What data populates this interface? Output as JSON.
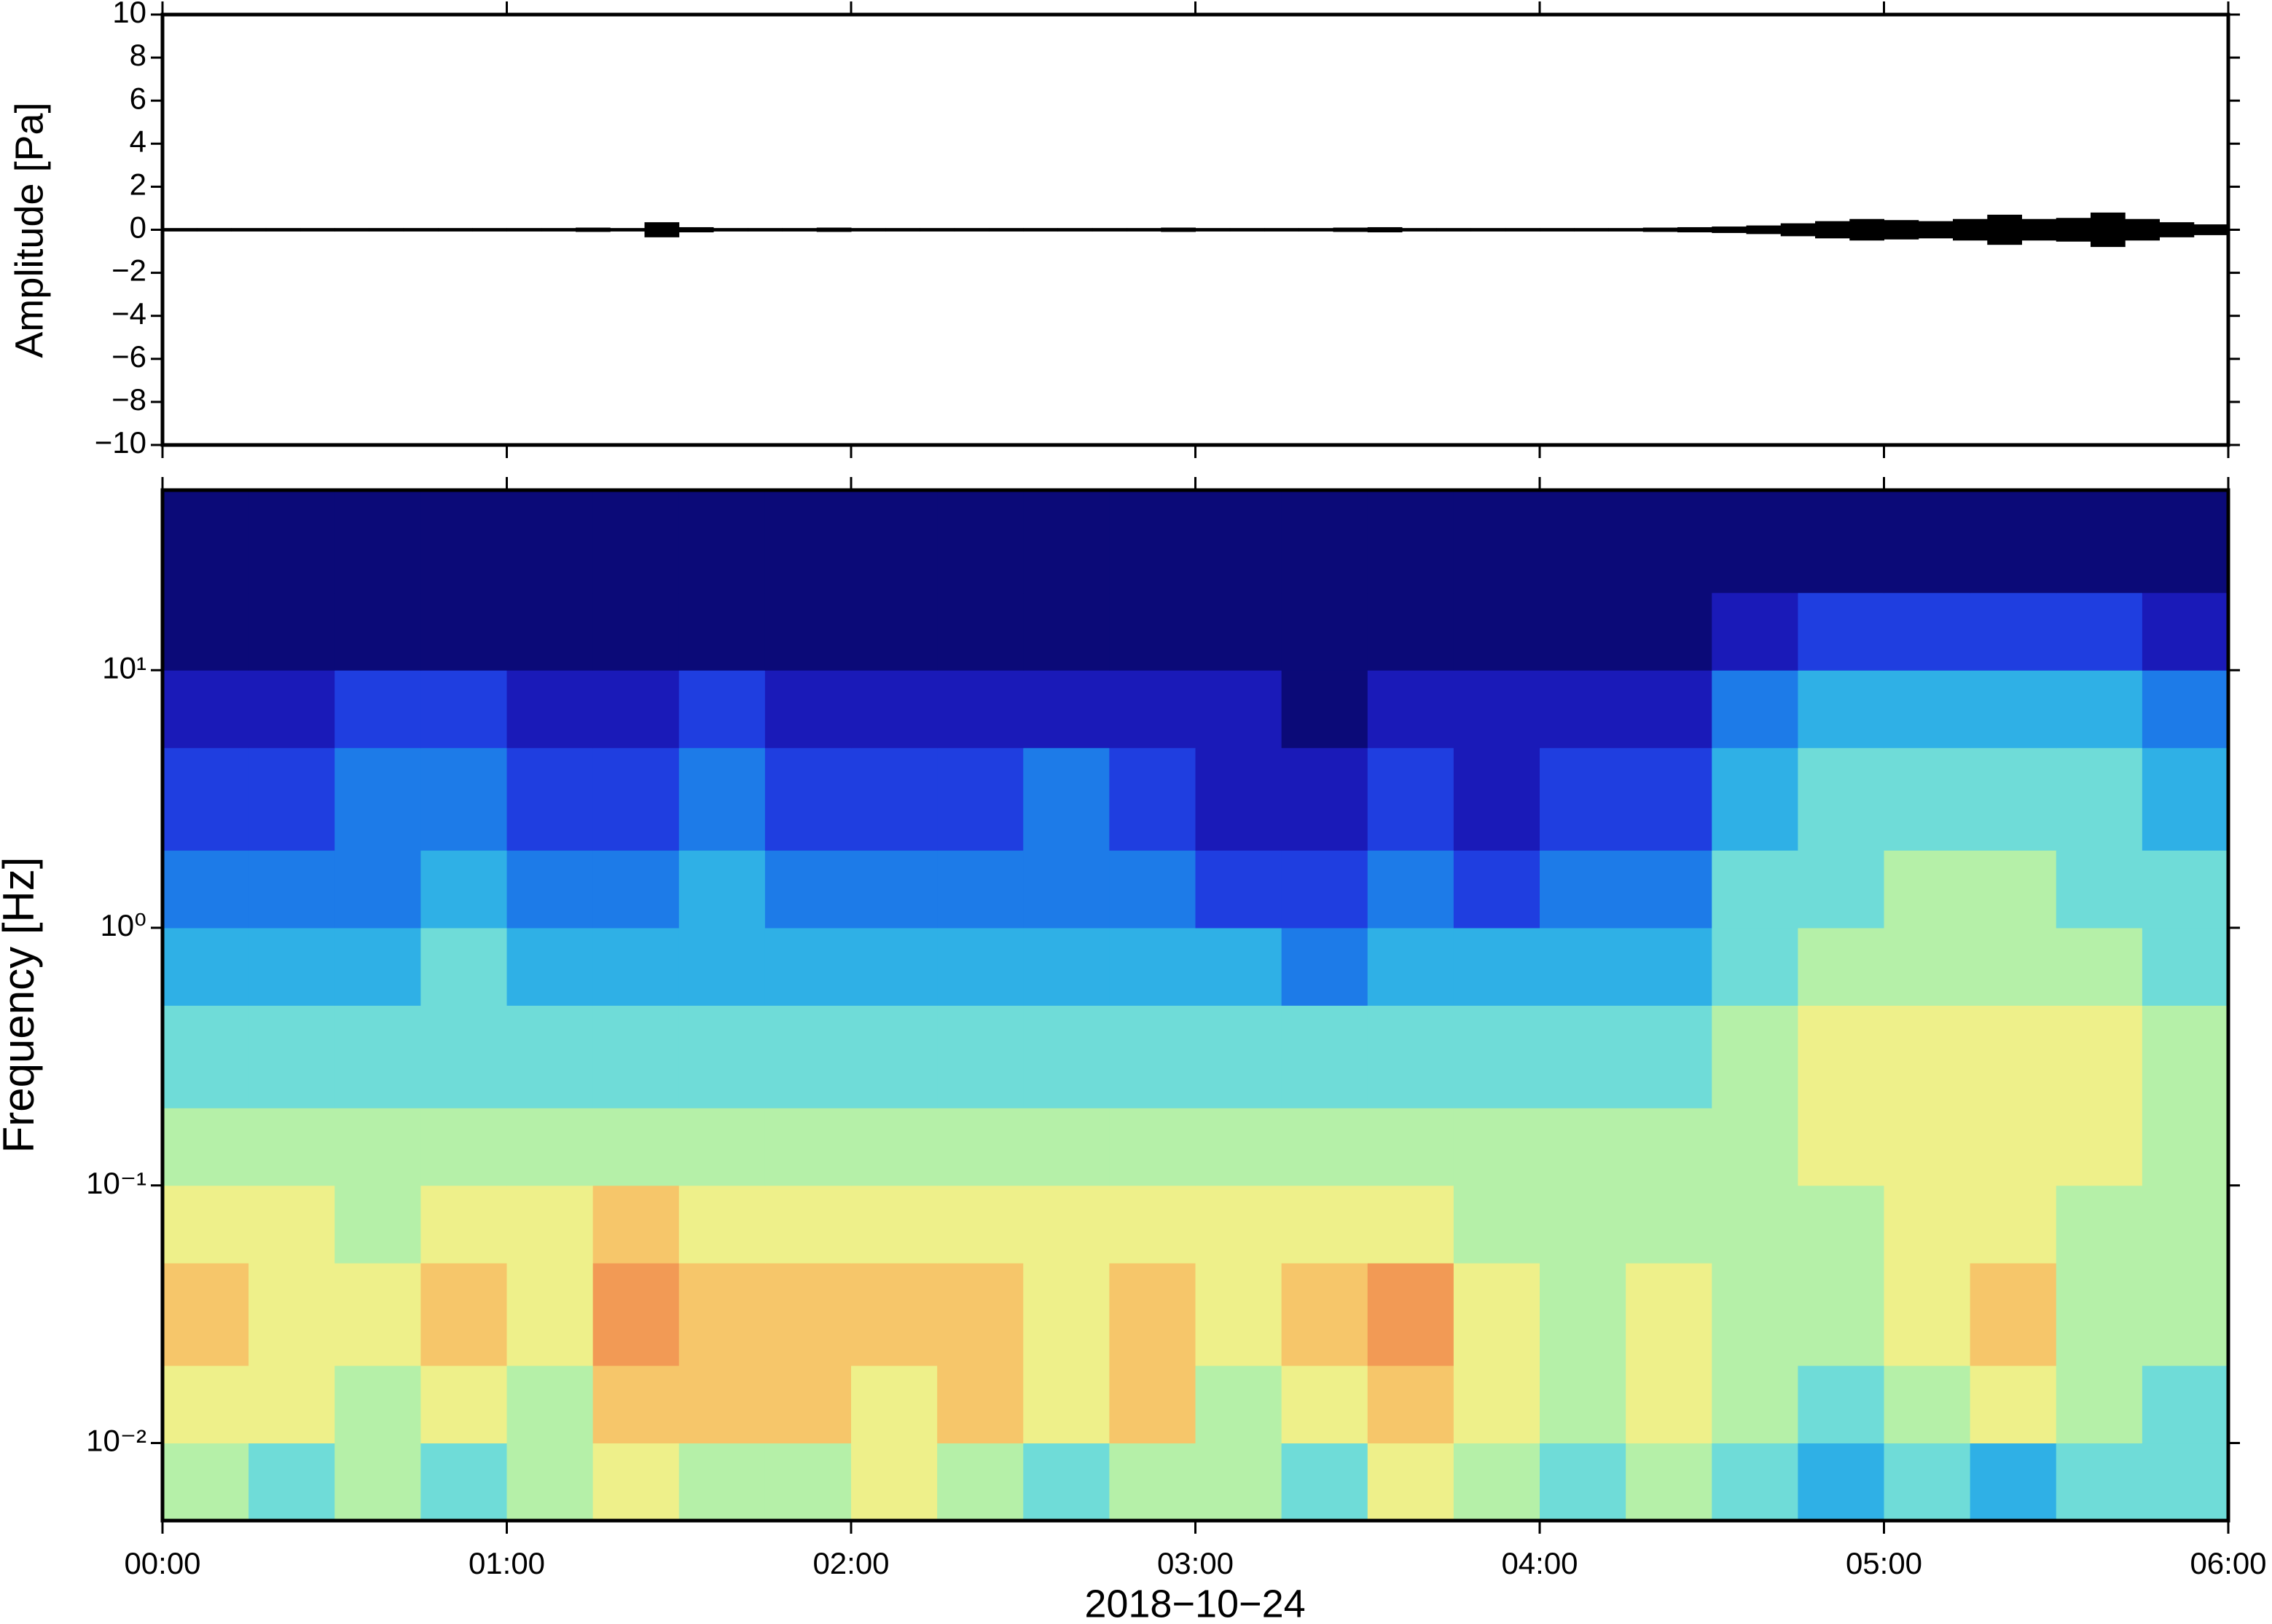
{
  "chart_data": [
    {
      "type": "waveform",
      "ylabel": "Amplitude [Pa]",
      "color": "#000000",
      "x": [
        0,
        0.1,
        0.2,
        0.3,
        0.4,
        0.5,
        0.6,
        0.7,
        0.8,
        0.9,
        1,
        1.1,
        1.2,
        1.3,
        1.4,
        1.5,
        1.6,
        1.7,
        1.8,
        1.9,
        2,
        2.1,
        2.2,
        2.3,
        2.4,
        2.5,
        2.6,
        2.7,
        2.8,
        2.9,
        3,
        3.1,
        3.2,
        3.3,
        3.4,
        3.5,
        3.6,
        3.7,
        3.8,
        3.9,
        4,
        4.1,
        4.2,
        4.3,
        4.4,
        4.5,
        4.6,
        4.7,
        4.8,
        4.9,
        5,
        5.1,
        5.2,
        5.3,
        5.4,
        5.5,
        5.6,
        5.7,
        5.8,
        5.9
      ],
      "values": [
        0.08,
        0.08,
        0.08,
        0.08,
        0.08,
        0.08,
        0.08,
        0.08,
        0.08,
        0.08,
        0.08,
        0.08,
        0.1,
        0.08,
        0.35,
        0.12,
        0.08,
        0.08,
        0.08,
        0.1,
        0.08,
        0.08,
        0.08,
        0.08,
        0.08,
        0.08,
        0.08,
        0.08,
        0.08,
        0.1,
        0.08,
        0.08,
        0.08,
        0.08,
        0.1,
        0.12,
        0.08,
        0.08,
        0.08,
        0.08,
        0.08,
        0.08,
        0.08,
        0.1,
        0.12,
        0.15,
        0.2,
        0.3,
        0.4,
        0.5,
        0.45,
        0.4,
        0.5,
        0.7,
        0.5,
        0.55,
        0.8,
        0.5,
        0.35,
        0.25
      ],
      "xlim": [
        0,
        6
      ],
      "xticks": [
        0,
        1,
        2,
        3,
        4,
        5,
        6
      ],
      "ylim": [
        -10,
        10
      ],
      "yticks": [
        {
          "value": -10,
          "label": "−10"
        },
        {
          "value": -8,
          "label": "−8"
        },
        {
          "value": -6,
          "label": "−6"
        },
        {
          "value": -4,
          "label": "−4"
        },
        {
          "value": -2,
          "label": "−2"
        },
        0,
        2,
        4,
        6,
        8,
        10
      ]
    },
    {
      "type": "spectrogram",
      "ylabel": "Frequency [Hz]",
      "xlabel": "2018−10−24",
      "log_y": true,
      "colors": [
        "#0b0a78",
        "#1a1ab8",
        "#1f3ee0",
        "#1d7be8",
        "#2fb0e6",
        "#6fdcd8",
        "#b5f0a8",
        "#eef08a",
        "#f6c66a",
        "#f29a55"
      ],
      "xbins": [
        0,
        0.25,
        0.5,
        0.75,
        1,
        1.25,
        1.5,
        1.75,
        2,
        2.25,
        2.5,
        2.75,
        3,
        3.25,
        3.5,
        3.75,
        4,
        4.25,
        4.5,
        4.75,
        5,
        5.25,
        5.5,
        5.75,
        6
      ],
      "ybins": [
        0.005,
        0.01,
        0.02,
        0.05,
        0.1,
        0.2,
        0.5,
        1,
        2,
        5,
        10,
        20,
        50
      ],
      "z": [
        [
          6,
          5,
          6,
          5,
          6,
          7,
          6,
          6,
          7,
          6,
          5,
          6,
          6,
          5,
          7,
          6,
          5,
          6,
          5,
          4,
          5,
          4,
          5,
          5
        ],
        [
          7,
          7,
          6,
          7,
          6,
          8,
          8,
          8,
          7,
          8,
          7,
          8,
          6,
          7,
          8,
          7,
          6,
          7,
          6,
          5,
          6,
          7,
          6,
          5
        ],
        [
          8,
          7,
          7,
          8,
          7,
          9,
          8,
          8,
          8,
          8,
          7,
          8,
          7,
          8,
          9,
          7,
          6,
          7,
          6,
          6,
          7,
          8,
          6,
          6
        ],
        [
          7,
          7,
          6,
          7,
          7,
          8,
          7,
          7,
          7,
          7,
          7,
          7,
          7,
          7,
          7,
          6,
          6,
          6,
          6,
          6,
          7,
          7,
          6,
          6
        ],
        [
          6,
          6,
          6,
          6,
          6,
          6,
          6,
          6,
          6,
          6,
          6,
          6,
          6,
          6,
          6,
          6,
          6,
          6,
          6,
          7,
          7,
          7,
          7,
          6
        ],
        [
          5,
          5,
          5,
          5,
          5,
          5,
          5,
          5,
          5,
          5,
          5,
          5,
          5,
          5,
          5,
          5,
          5,
          5,
          6,
          7,
          7,
          7,
          7,
          6
        ],
        [
          4,
          4,
          4,
          5,
          4,
          4,
          4,
          4,
          4,
          4,
          4,
          4,
          4,
          3,
          4,
          4,
          4,
          4,
          5,
          6,
          6,
          6,
          6,
          5
        ],
        [
          3,
          3,
          3,
          4,
          3,
          3,
          4,
          3,
          3,
          3,
          3,
          3,
          2,
          2,
          3,
          2,
          3,
          3,
          5,
          5,
          6,
          6,
          5,
          5
        ],
        [
          2,
          2,
          3,
          3,
          2,
          2,
          3,
          2,
          2,
          2,
          3,
          2,
          1,
          1,
          2,
          1,
          2,
          2,
          4,
          5,
          5,
          5,
          5,
          4
        ],
        [
          1,
          1,
          2,
          2,
          1,
          1,
          2,
          1,
          1,
          1,
          1,
          1,
          1,
          0,
          1,
          1,
          1,
          1,
          3,
          4,
          4,
          4,
          4,
          3
        ],
        [
          0,
          0,
          0,
          0,
          0,
          0,
          0,
          0,
          0,
          0,
          0,
          0,
          0,
          0,
          0,
          0,
          0,
          0,
          1,
          2,
          2,
          2,
          2,
          1
        ],
        [
          0,
          0,
          0,
          0,
          0,
          0,
          0,
          0,
          0,
          0,
          0,
          0,
          0,
          0,
          0,
          0,
          0,
          0,
          0,
          0,
          0,
          0,
          0,
          0
        ]
      ],
      "xlim": [
        0,
        6
      ],
      "xticks": [
        {
          "value": 0,
          "label": "00:00"
        },
        {
          "value": 1,
          "label": "01:00"
        },
        {
          "value": 2,
          "label": "02:00"
        },
        {
          "value": 3,
          "label": "03:00"
        },
        {
          "value": 4,
          "label": "04:00"
        },
        {
          "value": 5,
          "label": "05:00"
        },
        {
          "value": 6,
          "label": "06:00"
        }
      ],
      "ylim": [
        0.005,
        50
      ],
      "yticks": [
        {
          "value": 0.01,
          "label": "10⁻²"
        },
        {
          "value": 0.1,
          "label": "10⁻¹"
        },
        {
          "value": 1,
          "label": "10⁰"
        },
        {
          "value": 10,
          "label": "10¹"
        }
      ]
    }
  ]
}
